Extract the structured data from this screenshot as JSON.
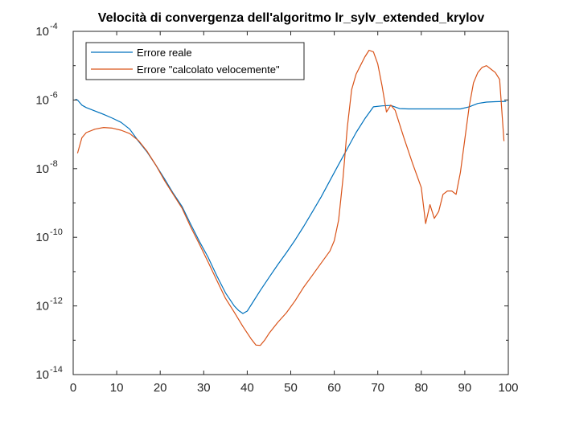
{
  "chart_data": {
    "type": "line",
    "title": "Velocità di convergenza dell'algoritmo lr_sylv_extended_krylov",
    "xlabel": "",
    "ylabel": "",
    "xlim": [
      0,
      100
    ],
    "ylim_exp": [
      -14,
      -4
    ],
    "yscale": "log",
    "grid": false,
    "legend_position": "top-left",
    "x_ticks": [
      "0",
      "10",
      "20",
      "30",
      "40",
      "50",
      "60",
      "70",
      "80",
      "90",
      "100"
    ],
    "y_ticks": [
      {
        "exp": -4,
        "base": "10",
        "power": "-4"
      },
      {
        "exp": -6,
        "base": "10",
        "power": "-6"
      },
      {
        "exp": -8,
        "base": "10",
        "power": "-8"
      },
      {
        "exp": -10,
        "base": "10",
        "power": "-10"
      },
      {
        "exp": -12,
        "base": "10",
        "power": "-12"
      },
      {
        "exp": -14,
        "base": "10",
        "power": "-14"
      }
    ],
    "series": [
      {
        "name": "Errore reale",
        "color": "#0072BD",
        "points": [
          [
            0.5,
            -5.98
          ],
          [
            1,
            -6.0
          ],
          [
            2,
            -6.15
          ],
          [
            3,
            -6.22
          ],
          [
            5,
            -6.32
          ],
          [
            7,
            -6.42
          ],
          [
            9,
            -6.53
          ],
          [
            11,
            -6.65
          ],
          [
            13,
            -6.85
          ],
          [
            15,
            -7.2
          ],
          [
            17,
            -7.52
          ],
          [
            19,
            -7.9
          ],
          [
            21,
            -8.3
          ],
          [
            23,
            -8.72
          ],
          [
            25,
            -9.1
          ],
          [
            27,
            -9.62
          ],
          [
            29,
            -10.12
          ],
          [
            31,
            -10.58
          ],
          [
            33,
            -11.12
          ],
          [
            35,
            -11.62
          ],
          [
            37,
            -12.0
          ],
          [
            38,
            -12.13
          ],
          [
            39,
            -12.22
          ],
          [
            40,
            -12.15
          ],
          [
            41,
            -11.95
          ],
          [
            43,
            -11.55
          ],
          [
            45,
            -11.17
          ],
          [
            47,
            -10.8
          ],
          [
            49,
            -10.45
          ],
          [
            51,
            -10.08
          ],
          [
            53,
            -9.68
          ],
          [
            55,
            -9.25
          ],
          [
            57,
            -8.82
          ],
          [
            59,
            -8.35
          ],
          [
            61,
            -7.88
          ],
          [
            63,
            -7.42
          ],
          [
            65,
            -6.95
          ],
          [
            67,
            -6.55
          ],
          [
            69,
            -6.2
          ],
          [
            71,
            -6.17
          ],
          [
            73,
            -6.16
          ],
          [
            75,
            -6.25
          ],
          [
            77,
            -6.26
          ],
          [
            80,
            -6.26
          ],
          [
            83,
            -6.26
          ],
          [
            86,
            -6.26
          ],
          [
            89,
            -6.26
          ],
          [
            91,
            -6.2
          ],
          [
            93,
            -6.1
          ],
          [
            95,
            -6.06
          ],
          [
            97,
            -6.05
          ],
          [
            99.5,
            -6.04
          ]
        ]
      },
      {
        "name": "Errore \"calcolato velocemente\"",
        "color": "#D95319",
        "points": [
          [
            1,
            -7.55
          ],
          [
            2,
            -7.1
          ],
          [
            3,
            -6.95
          ],
          [
            5,
            -6.85
          ],
          [
            7,
            -6.8
          ],
          [
            9,
            -6.82
          ],
          [
            11,
            -6.88
          ],
          [
            13,
            -6.98
          ],
          [
            15,
            -7.18
          ],
          [
            17,
            -7.5
          ],
          [
            19,
            -7.9
          ],
          [
            21,
            -8.35
          ],
          [
            23,
            -8.75
          ],
          [
            25,
            -9.15
          ],
          [
            27,
            -9.7
          ],
          [
            29,
            -10.2
          ],
          [
            31,
            -10.72
          ],
          [
            33,
            -11.25
          ],
          [
            35,
            -11.78
          ],
          [
            37,
            -12.18
          ],
          [
            39,
            -12.6
          ],
          [
            41,
            -12.98
          ],
          [
            42,
            -13.14
          ],
          [
            43,
            -13.15
          ],
          [
            44,
            -13.0
          ],
          [
            45,
            -12.8
          ],
          [
            47,
            -12.48
          ],
          [
            49,
            -12.2
          ],
          [
            51,
            -11.85
          ],
          [
            53,
            -11.45
          ],
          [
            55,
            -11.1
          ],
          [
            57,
            -10.75
          ],
          [
            59,
            -10.4
          ],
          [
            60,
            -10.1
          ],
          [
            61,
            -9.5
          ],
          [
            62,
            -8.3
          ],
          [
            63,
            -6.8
          ],
          [
            64,
            -5.7
          ],
          [
            65,
            -5.25
          ],
          [
            66,
            -5.0
          ],
          [
            67,
            -4.75
          ],
          [
            68,
            -4.55
          ],
          [
            69,
            -4.6
          ],
          [
            70,
            -4.95
          ],
          [
            71,
            -5.6
          ],
          [
            72,
            -6.35
          ],
          [
            73,
            -6.15
          ],
          [
            74,
            -6.3
          ],
          [
            76,
            -7.1
          ],
          [
            78,
            -7.85
          ],
          [
            80,
            -8.55
          ],
          [
            81,
            -9.6
          ],
          [
            82,
            -9.05
          ],
          [
            83,
            -9.45
          ],
          [
            84,
            -9.25
          ],
          [
            85,
            -8.75
          ],
          [
            86,
            -8.65
          ],
          [
            87,
            -8.65
          ],
          [
            88,
            -8.75
          ],
          [
            89,
            -8.1
          ],
          [
            90,
            -7.15
          ],
          [
            91,
            -6.2
          ],
          [
            92,
            -5.5
          ],
          [
            93,
            -5.2
          ],
          [
            94,
            -5.05
          ],
          [
            95,
            -5.0
          ],
          [
            96,
            -5.1
          ],
          [
            97,
            -5.2
          ],
          [
            98,
            -5.4
          ],
          [
            99,
            -7.2
          ]
        ]
      }
    ]
  }
}
